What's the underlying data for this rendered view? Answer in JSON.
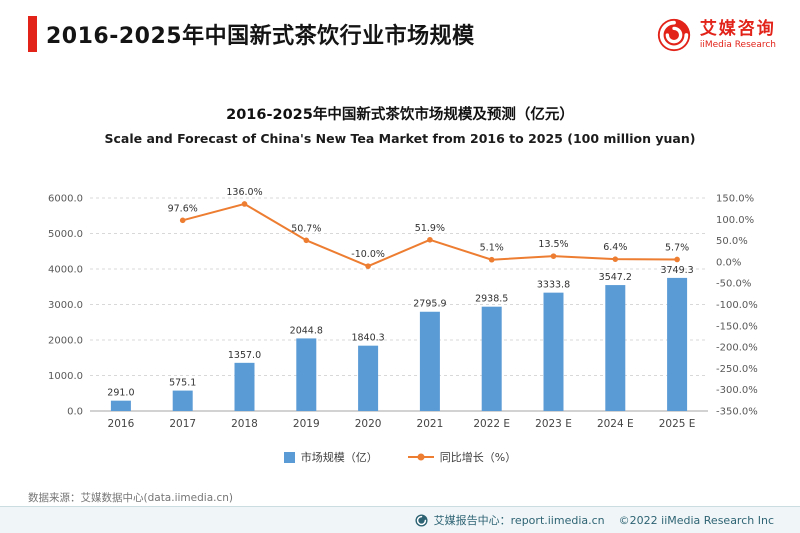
{
  "header": {
    "title": "2016-2025年中国新式茶饮行业市场规模",
    "accent_color": "#e2231a",
    "logo": {
      "brand_cn": "艾媒咨询",
      "brand_en": "iiMedia Research"
    }
  },
  "chart": {
    "title_cn": "2016-2025年中国新式茶饮市场规模及预测（亿元）",
    "title_en": "Scale and Forecast of China's New Tea Market from 2016 to 2025 (100 million yuan)"
  },
  "chart_data": {
    "type": "bar+line",
    "title": "2016-2025年中国新式茶饮市场规模及预测（亿元）",
    "subtitle": "Scale and Forecast of China's New Tea Market from 2016 to 2025 (100 million yuan)",
    "categories": [
      "2016",
      "2017",
      "2018",
      "2019",
      "2020",
      "2021",
      "2022 E",
      "2023 E",
      "2024 E",
      "2025 E"
    ],
    "series": [
      {
        "name": "市场规模（亿）",
        "type": "bar",
        "axis": "left",
        "color": "#5B9BD5",
        "values": [
          291.0,
          575.1,
          1357.0,
          2044.8,
          1840.3,
          2795.9,
          2938.5,
          3333.8,
          3547.2,
          3749.3
        ]
      },
      {
        "name": "同比增长（%）",
        "type": "line",
        "axis": "right",
        "color": "#ED7D31",
        "values": [
          null,
          97.6,
          136.0,
          50.7,
          -10.0,
          51.9,
          5.1,
          13.5,
          6.4,
          5.7
        ]
      }
    ],
    "left_axis": {
      "min": 0,
      "max": 6000,
      "step": 1000,
      "labels": [
        "0.0",
        "1000.0",
        "2000.0",
        "3000.0",
        "4000.0",
        "5000.0",
        "6000.0"
      ]
    },
    "right_axis": {
      "min": -350,
      "max": 150,
      "step": 50,
      "labels": [
        "150.0%",
        "100.0%",
        "50.0%",
        "0.0%",
        "-50.0%",
        "-100.0%",
        "-150.0%",
        "-200.0%",
        "-250.0%",
        "-300.0%",
        "-350.0%"
      ]
    },
    "grid": true,
    "legend_position": "bottom"
  },
  "source": "数据来源：艾媒数据中心(data.iimedia.cn)",
  "footer": {
    "report_center": "艾媒报告中心：report.iimedia.cn",
    "copyright": "©2022  iiMedia Research  Inc"
  }
}
